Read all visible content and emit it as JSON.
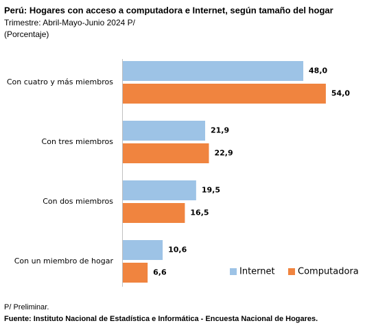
{
  "chart_data": {
    "type": "barh",
    "title": "Perú: Hogares con acceso a computadora e Internet, según tamaño del hogar",
    "subtitle": [
      "Trimestre: Abril-Mayo-Junio 2024 P/",
      "(Porcentaje)"
    ],
    "categories": [
      "Con cuatro y más miembros",
      "Con tres miembros",
      "Con dos miembros",
      "Con un miembro de hogar"
    ],
    "series": [
      {
        "name": "Internet",
        "color": "#9dc3e6",
        "values": [
          48.0,
          21.9,
          19.5,
          10.6
        ],
        "value_labels": [
          "48,0",
          "21,9",
          "19,5",
          "10,6"
        ]
      },
      {
        "name": "Computadora",
        "color": "#f0843f",
        "values": [
          54.0,
          22.9,
          16.5,
          6.6
        ],
        "value_labels": [
          "54,0",
          "22,9",
          "16,5",
          "6,6"
        ]
      }
    ],
    "legend": "lower right",
    "notes": [
      "P/ Preliminar.",
      "Fuente: Instituto Nacional de Estadística e Informática - Encuesta Nacional de Hogares."
    ]
  }
}
